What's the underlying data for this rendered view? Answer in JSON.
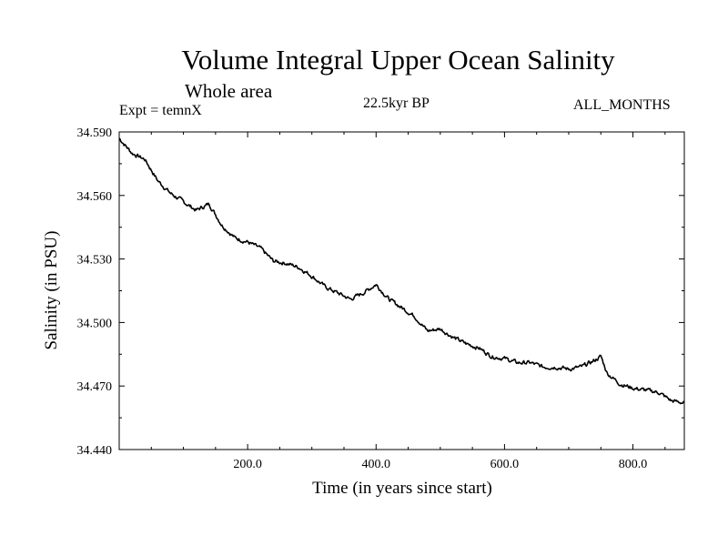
{
  "header": {
    "title": "Volume Integral Upper Ocean Salinity",
    "subtitle": "Whole area",
    "experiment": "Expt = temnX",
    "period": "22.5kyr BP",
    "months": "ALL_MONTHS"
  },
  "chart_data": {
    "type": "line",
    "title": "Volume Integral Upper Ocean Salinity",
    "subtitle": "Whole area",
    "xlabel": "Time (in years since start)",
    "ylabel": "Salinity (in PSU)",
    "xlim": [
      0,
      880
    ],
    "ylim": [
      34.44,
      34.59
    ],
    "x_ticks": [
      200,
      400,
      600,
      800
    ],
    "x_tick_labels": [
      "200.0",
      "400.0",
      "600.0",
      "800.0"
    ],
    "y_ticks": [
      34.44,
      34.47,
      34.5,
      34.53,
      34.56,
      34.59
    ],
    "y_tick_labels": [
      "34.440",
      "34.470",
      "34.500",
      "34.530",
      "34.560",
      "34.590"
    ],
    "grid": false,
    "series": [
      {
        "name": "salinity",
        "color": "#000000",
        "x": [
          0,
          20,
          40,
          60,
          80,
          100,
          120,
          140,
          160,
          180,
          200,
          220,
          240,
          260,
          280,
          300,
          320,
          340,
          360,
          380,
          400,
          420,
          440,
          460,
          480,
          500,
          520,
          540,
          560,
          580,
          600,
          620,
          640,
          660,
          680,
          700,
          720,
          740,
          750,
          760,
          780,
          800,
          820,
          840,
          860,
          880
        ],
        "y": [
          34.587,
          34.58,
          34.577,
          34.567,
          34.561,
          34.557,
          34.553,
          34.556,
          34.546,
          34.54,
          34.538,
          34.535,
          34.529,
          34.528,
          34.526,
          34.522,
          34.517,
          34.514,
          34.511,
          34.514,
          34.518,
          34.511,
          34.507,
          34.503,
          34.496,
          34.497,
          34.493,
          34.49,
          34.488,
          34.484,
          34.483,
          34.481,
          34.481,
          34.479,
          34.479,
          34.478,
          34.479,
          34.482,
          34.484,
          34.476,
          34.471,
          34.469,
          34.468,
          34.467,
          34.463,
          34.462
        ]
      }
    ]
  }
}
